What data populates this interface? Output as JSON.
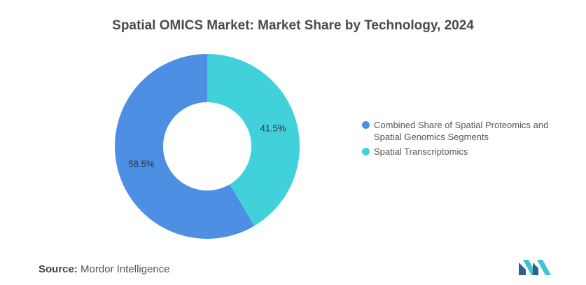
{
  "chart_data": {
    "type": "pie",
    "title": "Spatial OMICS Market: Market Share by Technology, 2024",
    "donut": true,
    "series": [
      {
        "name": "Spatial Transcriptomics",
        "value": 41.5,
        "label": "41.5%",
        "color": "#40d1db"
      },
      {
        "name": "Combined Share of Spatial Proteomics and Spatial Genomics Segments",
        "value": 58.5,
        "label": "58.5%",
        "color": "#4c8fe3"
      }
    ],
    "legend_position": "right"
  },
  "legend": [
    {
      "label": "Combined Share of Spatial Proteomics and Spatial Genomics Segments",
      "color": "#4c8fe3"
    },
    {
      "label": "Spatial Transcriptomics",
      "color": "#40d1db"
    }
  ],
  "source": {
    "label": "Source:",
    "value": "Mordor Intelligence"
  }
}
